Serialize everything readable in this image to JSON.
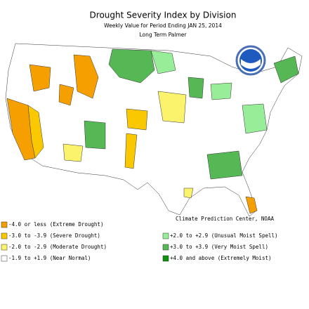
{
  "header": {
    "title": "Drought Severity Index by Division",
    "subtitle": "Weekly Value for Period Ending JAN 25, 2014",
    "subtitle2": "Long Term Palmer"
  },
  "credit": "Climate Prediction Center, NOAA",
  "legend": {
    "items": [
      {
        "label": "-4.0 or less (Extreme Drought)",
        "color": "#f5a000"
      },
      {
        "label": "-3.0 to -3.9 (Severe Drought)",
        "color": "#f9c800"
      },
      {
        "label": "-2.0 to -2.9 (Moderate Drought)",
        "color": "#fbf36c"
      },
      {
        "label": "-1.9 to +1.9 (Near Normal)",
        "color": "#ffffff"
      },
      {
        "label": "+2.0 to +2.9 (Unusual Moist Spell)",
        "color": "#98ee98"
      },
      {
        "label": "+3.0 to +3.9 (Very Moist Spell)",
        "color": "#55b855"
      },
      {
        "label": "+4.0 and above (Extremely Moist)",
        "color": "#0d900d"
      }
    ]
  }
}
